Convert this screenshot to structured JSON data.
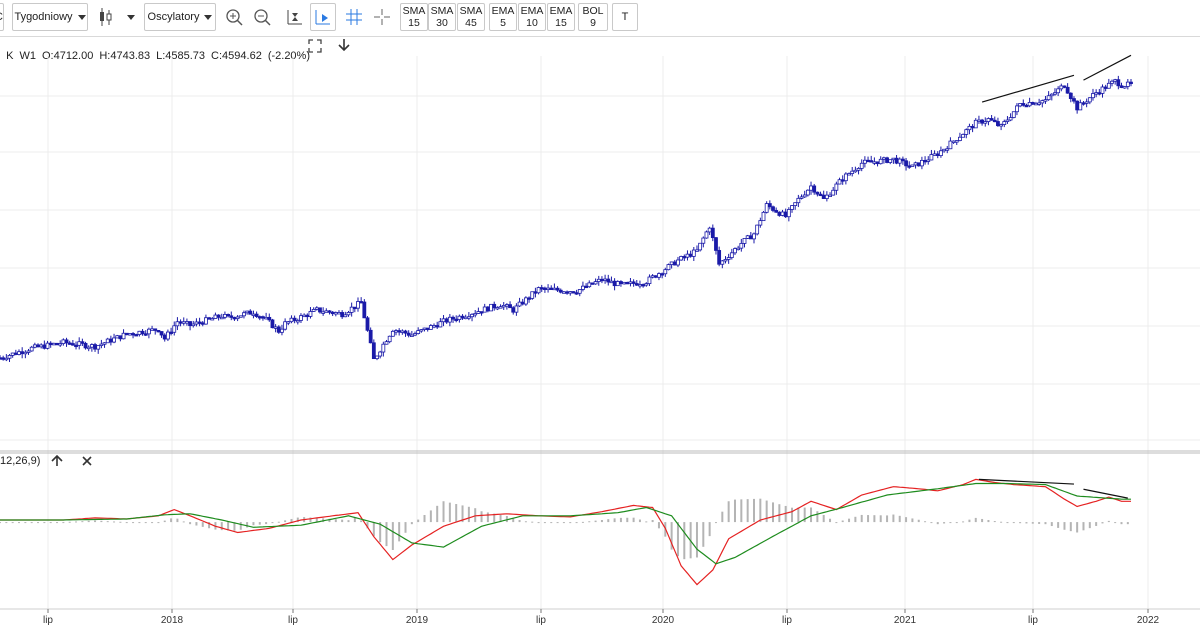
{
  "toolbar": {
    "timeframe": "Tygodniowy",
    "oscillators": "Oscylatory",
    "indicators": [
      {
        "name": "SMA",
        "period": "15"
      },
      {
        "name": "SMA",
        "period": "30"
      },
      {
        "name": "SMA",
        "period": "45"
      },
      {
        "name": "EMA",
        "period": "5"
      },
      {
        "name": "EMA",
        "period": "10"
      },
      {
        "name": "EMA",
        "period": "15"
      },
      {
        "name": "BOL",
        "period": "9"
      }
    ],
    "text_tool": "T"
  },
  "ohlc": {
    "interval": "W1",
    "open": "O:4712.00",
    "high": "H:4743.83",
    "low": "L:4585.73",
    "close": "C:4594.62",
    "change": "(-2.20%)"
  },
  "macd": {
    "params": "12,26,9)"
  },
  "x_axis": [
    "lip",
    "2018",
    "lip",
    "2019",
    "lip",
    "2020",
    "lip",
    "2021",
    "lip",
    "2022"
  ],
  "colors": {
    "candle": "#1a1aa8",
    "macd": "#e52222",
    "signal": "#1e8c1e",
    "hist": "#b4b4b4",
    "trend": "#111111",
    "grid": "#ececec"
  },
  "chart_data": {
    "type": "candlestick",
    "price_path": [
      [
        0,
        -20
      ],
      [
        4,
        -16
      ],
      [
        10,
        -10
      ],
      [
        20,
        -4
      ],
      [
        30,
        -8
      ],
      [
        40,
        5
      ],
      [
        50,
        10
      ],
      [
        52,
        0
      ],
      [
        56,
        18
      ],
      [
        60,
        14
      ],
      [
        70,
        24
      ],
      [
        72,
        22
      ],
      [
        80,
        28
      ],
      [
        84,
        20
      ],
      [
        88,
        8
      ],
      [
        90,
        16
      ],
      [
        96,
        24
      ],
      [
        100,
        30
      ],
      [
        108,
        26
      ],
      [
        114,
        38
      ],
      [
        118,
        -22
      ],
      [
        124,
        10
      ],
      [
        130,
        4
      ],
      [
        140,
        18
      ],
      [
        150,
        28
      ],
      [
        158,
        36
      ],
      [
        162,
        30
      ],
      [
        170,
        52
      ],
      [
        182,
        50
      ],
      [
        190,
        62
      ],
      [
        196,
        56
      ],
      [
        204,
        60
      ],
      [
        214,
        82
      ],
      [
        220,
        92
      ],
      [
        224,
        118
      ],
      [
        227,
        78
      ],
      [
        234,
        100
      ],
      [
        238,
        110
      ],
      [
        242,
        140
      ],
      [
        248,
        128
      ],
      [
        252,
        146
      ],
      [
        256,
        160
      ],
      [
        260,
        146
      ],
      [
        266,
        168
      ],
      [
        272,
        184
      ],
      [
        282,
        188
      ],
      [
        288,
        180
      ],
      [
        296,
        194
      ],
      [
        302,
        210
      ],
      [
        308,
        226
      ],
      [
        312,
        230
      ],
      [
        316,
        222
      ],
      [
        322,
        246
      ],
      [
        330,
        250
      ],
      [
        336,
        266
      ],
      [
        340,
        242
      ],
      [
        346,
        258
      ],
      [
        352,
        270
      ],
      [
        354,
        266
      ]
    ],
    "price_min": -80,
    "price_max": 290,
    "macd_path": [
      [
        0,
        0.2
      ],
      [
        20,
        0.2
      ],
      [
        30,
        0.4
      ],
      [
        40,
        0.3
      ],
      [
        50,
        0.6
      ],
      [
        55,
        1.2
      ],
      [
        60,
        0.6
      ],
      [
        68,
        -0.4
      ],
      [
        75,
        -1.0
      ],
      [
        85,
        -0.6
      ],
      [
        95,
        0.2
      ],
      [
        105,
        0.6
      ],
      [
        113,
        0.9
      ],
      [
        118,
        -1.4
      ],
      [
        124,
        -3.6
      ],
      [
        130,
        -2.2
      ],
      [
        140,
        -0.4
      ],
      [
        150,
        0.6
      ],
      [
        160,
        0.8
      ],
      [
        170,
        0.6
      ],
      [
        180,
        0.5
      ],
      [
        190,
        1.0
      ],
      [
        200,
        1.6
      ],
      [
        206,
        1.4
      ],
      [
        210,
        -0.6
      ],
      [
        215,
        -4.2
      ],
      [
        220,
        -6.0
      ],
      [
        225,
        -4.6
      ],
      [
        230,
        -1.6
      ],
      [
        240,
        0.2
      ],
      [
        250,
        1.0
      ],
      [
        256,
        2.0
      ],
      [
        260,
        1.6
      ],
      [
        264,
        1.2
      ],
      [
        272,
        2.6
      ],
      [
        282,
        3.4
      ],
      [
        290,
        3.2
      ],
      [
        296,
        3.0
      ],
      [
        304,
        3.6
      ],
      [
        308,
        4.1
      ],
      [
        314,
        3.8
      ],
      [
        320,
        3.6
      ],
      [
        330,
        3.4
      ],
      [
        336,
        2.2
      ],
      [
        340,
        1.5
      ],
      [
        346,
        2.0
      ],
      [
        350,
        2.4
      ],
      [
        354,
        2.0
      ]
    ],
    "signal_path": [
      [
        0,
        0.2
      ],
      [
        20,
        0.2
      ],
      [
        40,
        0.3
      ],
      [
        52,
        0.7
      ],
      [
        60,
        0.8
      ],
      [
        70,
        0.2
      ],
      [
        80,
        -0.5
      ],
      [
        95,
        -0.3
      ],
      [
        110,
        0.6
      ],
      [
        120,
        -0.2
      ],
      [
        130,
        -2.0
      ],
      [
        140,
        -2.4
      ],
      [
        152,
        -0.4
      ],
      [
        165,
        0.6
      ],
      [
        180,
        0.6
      ],
      [
        195,
        0.9
      ],
      [
        204,
        1.4
      ],
      [
        212,
        0.6
      ],
      [
        220,
        -2.6
      ],
      [
        226,
        -4.0
      ],
      [
        232,
        -3.4
      ],
      [
        245,
        -1.2
      ],
      [
        256,
        0.6
      ],
      [
        266,
        1.4
      ],
      [
        280,
        2.6
      ],
      [
        296,
        3.2
      ],
      [
        308,
        3.7
      ],
      [
        318,
        3.7
      ],
      [
        330,
        3.6
      ],
      [
        340,
        2.5
      ],
      [
        354,
        2.2
      ]
    ],
    "macd_min": -7,
    "macd_max": 5,
    "divergence_price": [
      [
        310,
        248
      ],
      [
        339,
        276
      ],
      [
        342,
        271
      ],
      [
        357,
        297
      ]
    ],
    "divergence_macd": [
      [
        309,
        4.1
      ],
      [
        339,
        3.65
      ],
      [
        342,
        3.15
      ],
      [
        356,
        2.3
      ]
    ]
  }
}
